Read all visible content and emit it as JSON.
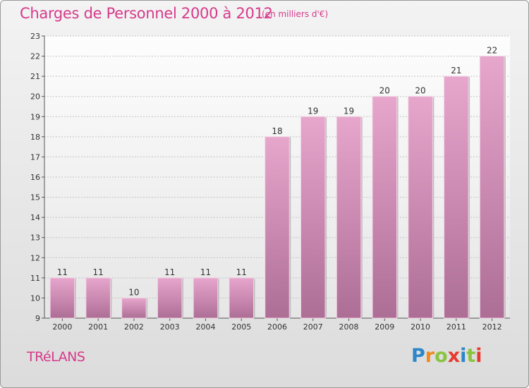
{
  "title": "Charges de Personnel 2000 à 2012",
  "unit_note": "(en milliers d'€)",
  "commune": "TRéLANS",
  "logo_text": "Proxiti",
  "colors": {
    "title": "#d63a8a",
    "bar_top": "#e7a6cc",
    "bar_bottom": "#ad6e96"
  },
  "chart_data": {
    "type": "bar",
    "title": "Charges de Personnel 2000 à 2012",
    "subtitle": "(en milliers d'€)",
    "xlabel": "",
    "ylabel": "",
    "categories": [
      "2000",
      "2001",
      "2002",
      "2003",
      "2004",
      "2005",
      "2006",
      "2007",
      "2008",
      "2009",
      "2010",
      "2011",
      "2012"
    ],
    "values": [
      11,
      11,
      10,
      11,
      11,
      11,
      18,
      19,
      19,
      20,
      20,
      21,
      22
    ],
    "ylim": [
      9,
      23
    ],
    "yticks": [
      9,
      10,
      11,
      12,
      13,
      14,
      15,
      16,
      17,
      18,
      19,
      20,
      21,
      22,
      23
    ],
    "grid": true,
    "legend": "none"
  }
}
